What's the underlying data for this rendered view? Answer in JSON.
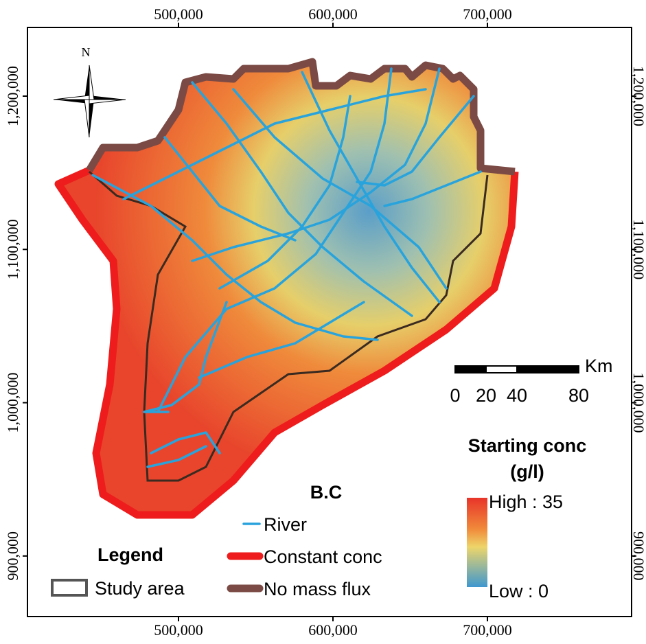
{
  "map": {
    "north": "N",
    "xlim": [
      402222,
      793333
    ],
    "ylim": [
      860500,
      1244800
    ],
    "xticks": [
      {
        "value": 500000,
        "label": "500,000"
      },
      {
        "value": 600000,
        "label": "600,000"
      },
      {
        "value": 700000,
        "label": "700,000"
      }
    ],
    "yticks": [
      {
        "value": 900000,
        "label": "900,000"
      },
      {
        "value": 1000000,
        "label": "1,000,000"
      },
      {
        "value": 1100000,
        "label": "1,100,000"
      },
      {
        "value": 1200000,
        "label": "1,200,000"
      }
    ],
    "scale_bar": {
      "unit": "Km",
      "ticks": [
        0,
        20,
        40,
        80
      ]
    },
    "legend": {
      "title": "Legend",
      "study_area": "Study area",
      "bc_title": "B.C",
      "items": [
        {
          "label": "River",
          "color": "#29a3dc"
        },
        {
          "label": "Constant conc",
          "color": "#ee1c1c"
        },
        {
          "label": "No mass flux",
          "color": "#7b4a45"
        }
      ]
    },
    "colorbar": {
      "title": "Starting conc",
      "unit": "(g/l)",
      "high": "High : 35",
      "low": "Low : 0"
    }
  }
}
